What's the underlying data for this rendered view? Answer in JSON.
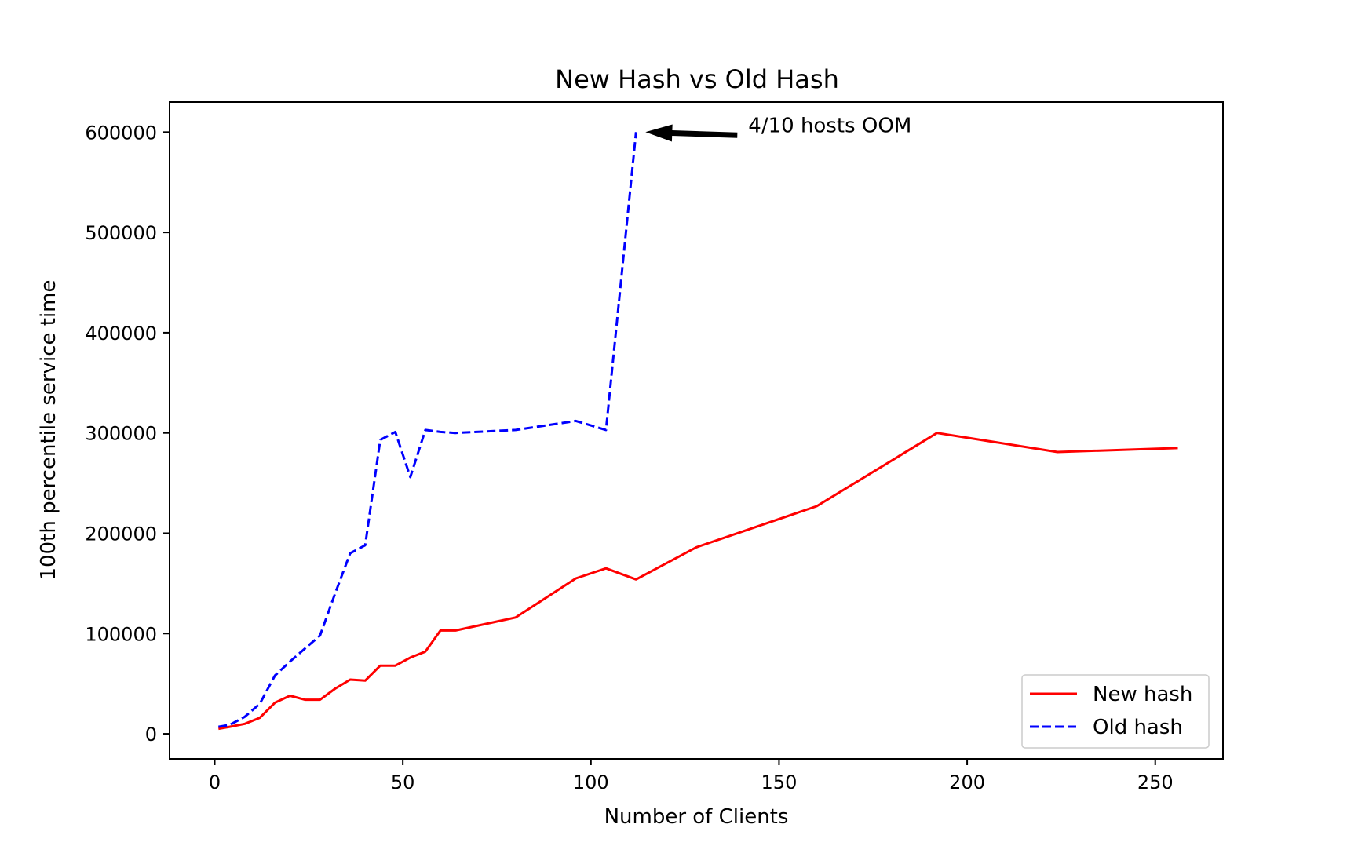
{
  "chart_data": {
    "type": "line",
    "title": "New Hash vs Old Hash",
    "xlabel": "Number of Clients",
    "ylabel": "100th percentile service time",
    "xlim": [
      -12,
      268
    ],
    "ylim": [
      -25000,
      630000
    ],
    "xticks": [
      0,
      50,
      100,
      150,
      200,
      250
    ],
    "yticks": [
      0,
      100000,
      200000,
      300000,
      400000,
      500000,
      600000
    ],
    "grid": false,
    "legend_position": "lower-right",
    "series": [
      {
        "name": "New hash",
        "color": "#ff0000",
        "style": "solid",
        "x": [
          1,
          4,
          8,
          12,
          16,
          20,
          24,
          28,
          32,
          36,
          40,
          44,
          48,
          52,
          56,
          60,
          64,
          80,
          96,
          104,
          112,
          128,
          160,
          192,
          224,
          256
        ],
        "y": [
          5000,
          7000,
          10000,
          16000,
          31000,
          38000,
          34000,
          34000,
          45000,
          54000,
          53000,
          68000,
          68000,
          76000,
          82000,
          103000,
          103000,
          116000,
          155000,
          165000,
          154000,
          186000,
          227000,
          300000,
          281000,
          285000
        ]
      },
      {
        "name": "Old hash",
        "color": "#0000ff",
        "style": "dashed",
        "x": [
          1,
          4,
          8,
          12,
          16,
          20,
          24,
          28,
          32,
          36,
          40,
          44,
          48,
          52,
          56,
          60,
          64,
          80,
          96,
          104,
          112
        ],
        "y": [
          7000,
          9000,
          17000,
          30000,
          58000,
          72000,
          85000,
          98000,
          140000,
          180000,
          188000,
          293000,
          301000,
          256000,
          303000,
          301000,
          300000,
          303000,
          312000,
          303000,
          600000
        ]
      }
    ],
    "annotation": {
      "text": "4/10 hosts OOM",
      "point": [
        112,
        600000
      ],
      "text_at": [
        141,
        600000
      ]
    }
  }
}
